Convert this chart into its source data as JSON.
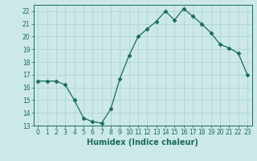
{
  "x": [
    0,
    1,
    2,
    3,
    4,
    5,
    6,
    7,
    8,
    9,
    10,
    11,
    12,
    13,
    14,
    15,
    16,
    17,
    18,
    19,
    20,
    21,
    22,
    23
  ],
  "y": [
    16.5,
    16.5,
    16.5,
    16.2,
    15.0,
    13.6,
    13.3,
    13.2,
    14.3,
    16.7,
    18.5,
    20.0,
    20.6,
    21.2,
    22.0,
    21.3,
    22.2,
    21.6,
    21.0,
    20.3,
    19.4,
    19.1,
    18.7,
    17.0
  ],
  "line_color": "#1a6b5a",
  "marker": "D",
  "marker_size": 2.5,
  "bg_color": "#cce8e8",
  "grid_color": "#afd4d4",
  "xlabel": "Humidex (Indice chaleur)",
  "xlim": [
    -0.5,
    23.5
  ],
  "ylim": [
    13,
    22.5
  ],
  "yticks": [
    13,
    14,
    15,
    16,
    17,
    18,
    19,
    20,
    21,
    22
  ],
  "xticks": [
    0,
    1,
    2,
    3,
    4,
    5,
    6,
    7,
    8,
    9,
    10,
    11,
    12,
    13,
    14,
    15,
    16,
    17,
    18,
    19,
    20,
    21,
    22,
    23
  ],
  "tick_color": "#1a6b5a",
  "label_fontsize": 7,
  "tick_fontsize": 5.5
}
